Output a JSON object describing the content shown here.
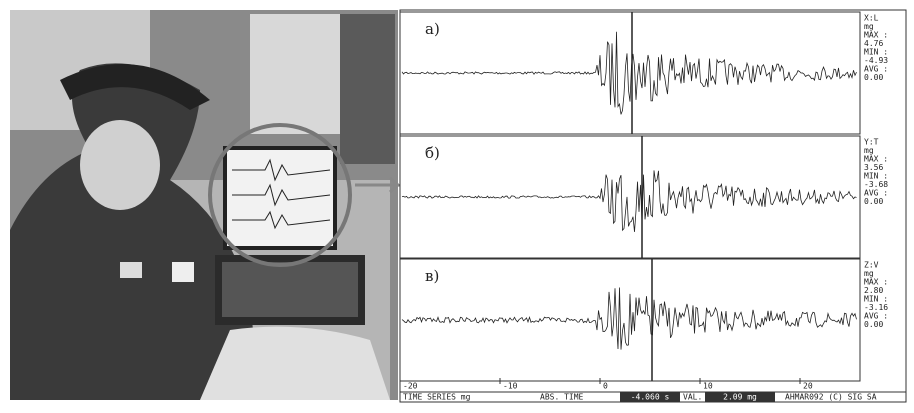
{
  "panels": [
    {
      "label": "а)",
      "readout": [
        "X:L",
        "mg",
        "MAX :",
        "4.76",
        "MIN :",
        "-4.93",
        "AVG :",
        "0.00"
      ]
    },
    {
      "label": "б)",
      "readout": [
        "Y:T",
        "mg",
        "MAX :",
        "3.56",
        "MIN :",
        "-3.68",
        "AVG :",
        "0.00"
      ]
    },
    {
      "label": "в)",
      "readout": [
        "Z:V",
        "mg",
        "MAX :",
        "2.80",
        "MIN :",
        "-3.16",
        "AVG :",
        "0.00"
      ]
    }
  ],
  "time_axis": {
    "ticks": [
      -20,
      -10,
      0,
      10,
      20
    ]
  },
  "footer": {
    "series": "TIME SERIES mg",
    "abs_time": "ABS. TIME",
    "time_value": "-4.060 s",
    "val": "VAL.",
    "val_value": "2.09 mg",
    "credit": "AHMAR092 (C) SIG SA"
  }
}
